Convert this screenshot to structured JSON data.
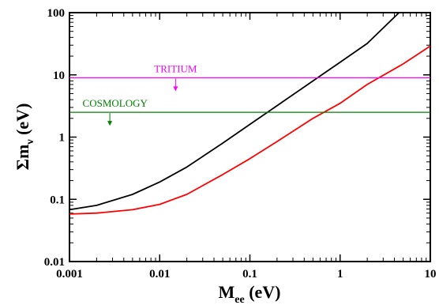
{
  "chart_data": {
    "type": "line",
    "xscale": "log",
    "yscale": "log",
    "xlim": [
      0.001,
      10
    ],
    "ylim": [
      0.01,
      100
    ],
    "x_tick_labels": [
      "0.001",
      "0.01",
      "0.1",
      "1",
      "10"
    ],
    "y_tick_labels": [
      "0.01",
      "0.1",
      "1",
      "10",
      "100"
    ],
    "xlabel": {
      "main": "M",
      "sub": "ee",
      "unit": " (eV)"
    },
    "ylabel": {
      "main": "Σm",
      "sub": "ν",
      "unit": " (eV)"
    },
    "grid": false,
    "series": [
      {
        "color": "#000000",
        "x": [
          0.001,
          0.002,
          0.005,
          0.01,
          0.02,
          0.05,
          0.1,
          0.2,
          0.5,
          1,
          2,
          4.5
        ],
        "y": [
          0.068,
          0.08,
          0.12,
          0.19,
          0.33,
          0.8,
          1.6,
          3.2,
          8.0,
          16,
          32,
          100
        ]
      },
      {
        "color": "#ff0000",
        "x": [
          0.001,
          0.002,
          0.005,
          0.01,
          0.02,
          0.05,
          0.1,
          0.2,
          0.5,
          1,
          2,
          5,
          10
        ],
        "y": [
          0.058,
          0.06,
          0.068,
          0.083,
          0.12,
          0.25,
          0.45,
          0.85,
          2.0,
          3.5,
          7.0,
          15,
          29
        ]
      }
    ],
    "hlines": [
      {
        "label": "TRITIUM",
        "y": 9.0,
        "color": "#ff00ff",
        "label_x": 0.015,
        "arrow_x": 0.015
      },
      {
        "label": "COSMOLOGY",
        "y": 2.5,
        "color": "#008000",
        "label_x": 0.0032,
        "arrow_x": 0.0028
      }
    ]
  }
}
